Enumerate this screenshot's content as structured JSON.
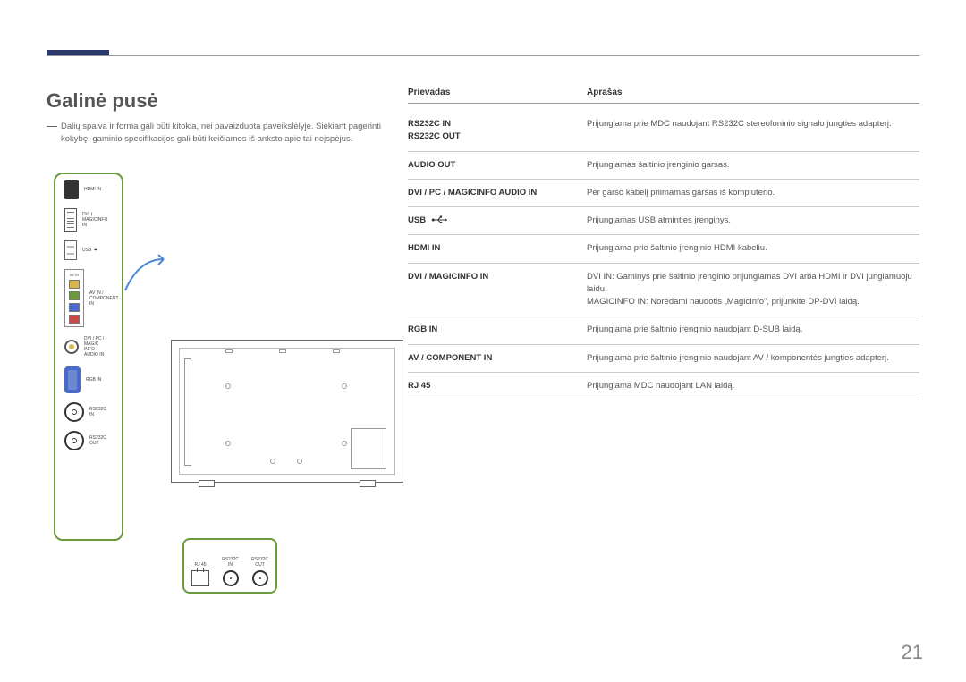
{
  "accent_color": "#2c3a6b",
  "heading": "Galinė pusė",
  "note": "Dalių spalva ir forma gali būti kitokia, nei pavaizduota paveikslėlyje. Siekiant pagerinti kokybę, gaminio specifikacijos gali būti keičiamos iš anksto apie tai neįspėjus.",
  "table": {
    "header_port": "Prievadas",
    "header_desc": "Aprašas",
    "rows": [
      {
        "port": "RS232C IN",
        "port2": "RS232C OUT",
        "desc": "Prijungiama prie MDC naudojant RS232C stereofoninio signalo jungties adapterį."
      },
      {
        "port": "AUDIO OUT",
        "desc": "Prijungiamas šaltinio įrenginio garsas."
      },
      {
        "port": "DVI / PC / MAGICINFO AUDIO IN",
        "desc": "Per garso kabelį priimamas garsas iš kompiuterio."
      },
      {
        "port": "USB",
        "icon": "usb",
        "desc": "Prijungiamas USB atminties įrenginys."
      },
      {
        "port": "HDMI IN",
        "desc": "Prijungiama prie šaltinio įrenginio HDMI kabeliu."
      },
      {
        "port": "DVI / MAGICINFO IN",
        "desc": "DVI IN: Gaminys prie šaltinio įrenginio prijungiamas DVI arba HDMI ir DVI jungiamuoju laidu.\nMAGICINFO IN: Norėdami naudotis „MagicInfo\", prijunkite DP-DVI laidą."
      },
      {
        "port": "RGB IN",
        "desc": "Prijungiama prie šaltinio įrenginio naudojant D-SUB laidą."
      },
      {
        "port": "AV / COMPONENT IN",
        "desc": "Prijungiama prie šaltinio įrenginio naudojant AV / komponentės jungties adapterį."
      },
      {
        "port": "RJ 45",
        "desc": "Prijungiama MDC naudojant LAN laidą."
      }
    ]
  },
  "port_strip": [
    {
      "shape": "hdmi",
      "label": "HDMI IN"
    },
    {
      "shape": "dvi",
      "label": "DVI /\nMAGICINFO\nIN"
    },
    {
      "shape": "usb",
      "label": "USB",
      "label_icon": "usb"
    },
    {
      "shape": "avgroup",
      "label": ""
    },
    {
      "shape": "jack",
      "cls": "jack-y",
      "label": "DVI / PC /\nMAGIC\nINFO\nAUDIO IN"
    },
    {
      "shape": "vga",
      "label": "RGB IN"
    },
    {
      "shape": "circ",
      "label": "RS232C\nIN"
    },
    {
      "shape": "circ",
      "label": "RS232C\nOUT"
    }
  ],
  "av_group_label": "AV IN",
  "small_box": {
    "rj45_label": "RJ 45",
    "rs232in_label": "RS232C\nIN",
    "rs232out_label": "RS232C\nOUT"
  },
  "page_number": "21"
}
